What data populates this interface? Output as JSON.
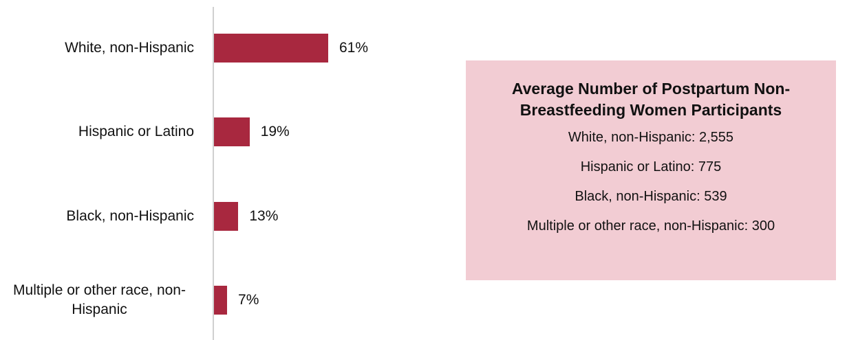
{
  "chart_data": {
    "type": "bar",
    "orientation": "horizontal",
    "categories": [
      "White, non-Hispanic",
      "Hispanic or Latino",
      "Black, non-Hispanic",
      "Multiple or other race, non-Hispanic"
    ],
    "values": [
      61,
      19,
      13,
      7
    ],
    "value_labels": [
      "61%",
      "19%",
      "13%",
      "7%"
    ],
    "color": "#a8283f"
  },
  "summary_box": {
    "title": "Average Number of Postpartum Non-Breastfeeding Women Participants",
    "items": [
      "White, non-Hispanic: 2,555",
      "Hispanic or Latino: 775",
      "Black, non-Hispanic: 539",
      "Multiple or other race, non-Hispanic: 300"
    ]
  }
}
